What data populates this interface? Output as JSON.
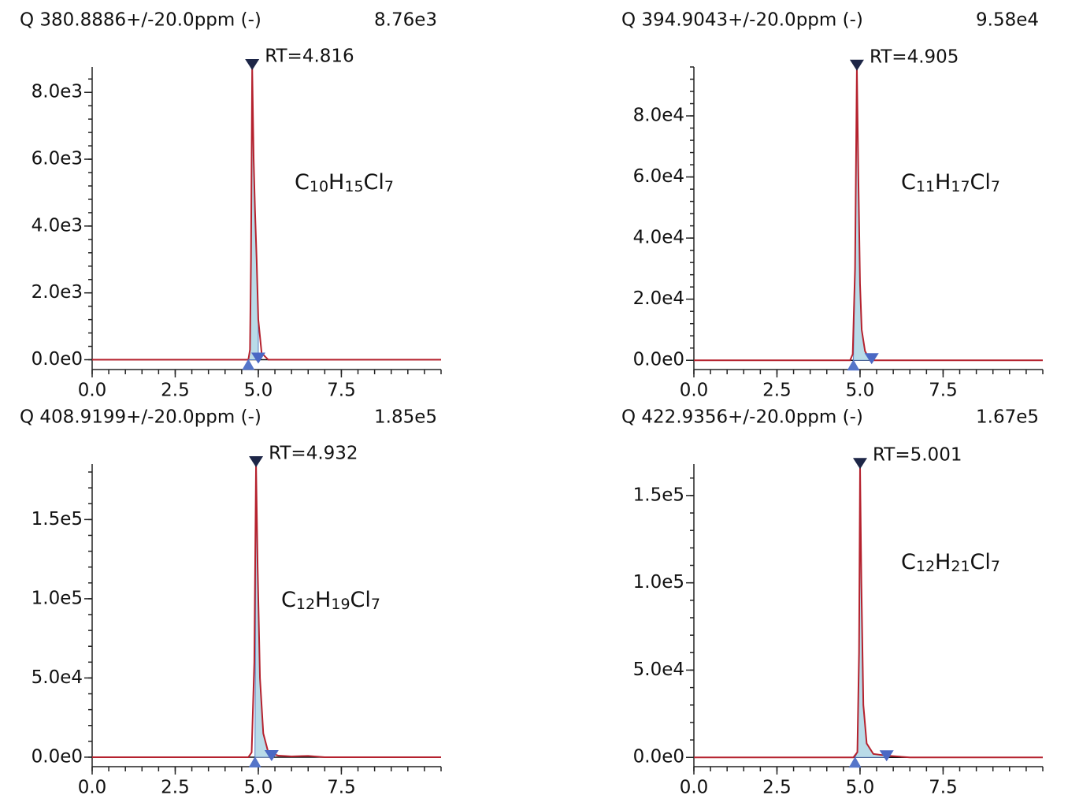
{
  "chart_data": [
    {
      "type": "line",
      "title": "Q 380.8886+/-20.0ppm (-)",
      "max_label": "8.76e3",
      "annotation": "RT=4.816",
      "formula": "C10H15Cl7",
      "x": [
        0,
        4.3,
        4.7,
        4.75,
        4.78,
        4.816,
        4.86,
        4.9,
        4.95,
        5.0,
        5.1,
        5.3,
        10.5
      ],
      "values": [
        0,
        0,
        0,
        300,
        3000,
        8760,
        6000,
        4500,
        3000,
        1200,
        200,
        0,
        0
      ],
      "peak_start": 4.7,
      "peak_end": 5.0,
      "color": "#b5222e",
      "xlim": [
        0,
        10.5
      ],
      "xticks": [
        {
          "value": 0,
          "label": "0.0"
        },
        2.5,
        {
          "value": 5,
          "label": "5.0"
        },
        7.5
      ],
      "ylim": [
        -200,
        8760
      ],
      "yticks": [
        {
          "value": 0,
          "label": "0.0e0"
        },
        {
          "value": 2000,
          "label": "2.0e3"
        },
        {
          "value": 4000,
          "label": "4.0e3"
        },
        {
          "value": 6000,
          "label": "6.0e3"
        },
        {
          "value": 8000,
          "label": "8.0e3"
        }
      ]
    },
    {
      "type": "line",
      "title": "Q 394.9043+/-20.0ppm (-)",
      "max_label": "9.58e4",
      "annotation": "RT=4.905",
      "formula": "C11H17Cl7",
      "x": [
        0,
        4.3,
        4.7,
        4.78,
        4.85,
        4.905,
        4.95,
        5.0,
        5.05,
        5.15,
        5.3,
        10.5
      ],
      "values": [
        0,
        0,
        0,
        2000,
        30000,
        95800,
        60000,
        25000,
        10000,
        3000,
        0,
        0
      ],
      "peak_start": 4.8,
      "peak_end": 5.35,
      "color": "#b5222e",
      "xlim": [
        0,
        10.5
      ],
      "xticks": [
        {
          "value": 0,
          "label": "0.0"
        },
        2.5,
        {
          "value": 5,
          "label": "5.0"
        },
        7.5
      ],
      "ylim": [
        -2000,
        96000
      ],
      "yticks": [
        {
          "value": 0,
          "label": "0.0e0"
        },
        {
          "value": 20000,
          "label": "2.0e4"
        },
        {
          "value": 40000,
          "label": "4.0e4"
        },
        {
          "value": 60000,
          "label": "6.0e4"
        },
        {
          "value": 80000,
          "label": "8.0e4"
        }
      ]
    },
    {
      "type": "line",
      "title": "Q 408.9199+/-20.0ppm (-)",
      "max_label": "1.85e5",
      "annotation": "RT=4.932",
      "formula": "C12H19Cl7",
      "x": [
        0,
        4.3,
        4.7,
        4.8,
        4.88,
        4.932,
        4.98,
        5.05,
        5.15,
        5.3,
        5.6,
        6.0,
        6.5,
        7.0,
        10.5
      ],
      "values": [
        0,
        0,
        0,
        3000,
        60000,
        185000,
        120000,
        50000,
        15000,
        3000,
        1000,
        500,
        800,
        0,
        0
      ],
      "peak_start": 4.9,
      "peak_end": 5.4,
      "color": "#b5222e",
      "xlim": [
        0,
        10.5
      ],
      "xticks": [
        {
          "value": 0,
          "label": "0.0"
        },
        2.5,
        {
          "value": 5,
          "label": "5.0"
        },
        7.5
      ],
      "ylim": [
        -4000,
        185000
      ],
      "yticks": [
        {
          "value": 0,
          "label": "0.0e0"
        },
        {
          "value": 50000,
          "label": "5.0e4"
        },
        {
          "value": 100000,
          "label": "1.0e5"
        },
        {
          "value": 150000,
          "label": "1.5e5"
        }
      ]
    },
    {
      "type": "line",
      "title": "Q 422.9356+/-20.0ppm (-)",
      "max_label": "1.67e5",
      "annotation": "RT=5.001",
      "formula": "C12H21Cl7",
      "x": [
        0,
        4.3,
        4.8,
        4.92,
        4.97,
        5.001,
        5.04,
        5.1,
        5.2,
        5.4,
        5.8,
        6.5,
        10.5
      ],
      "values": [
        0,
        0,
        0,
        3000,
        60000,
        167000,
        100000,
        30000,
        8000,
        2000,
        1000,
        0,
        0
      ],
      "peak_start": 4.85,
      "peak_end": 5.8,
      "color": "#b5222e",
      "xlim": [
        0,
        10.5
      ],
      "xticks": [
        {
          "value": 0,
          "label": "0.0"
        },
        2.5,
        {
          "value": 5,
          "label": "5.0"
        },
        7.5
      ],
      "ylim": [
        -3500,
        168000
      ],
      "yticks": [
        {
          "value": 0,
          "label": "0.0e0"
        },
        {
          "value": 50000,
          "label": "5.0e4"
        },
        {
          "value": 100000,
          "label": "1.0e5"
        },
        {
          "value": 150000,
          "label": "1.5e5"
        }
      ]
    }
  ]
}
